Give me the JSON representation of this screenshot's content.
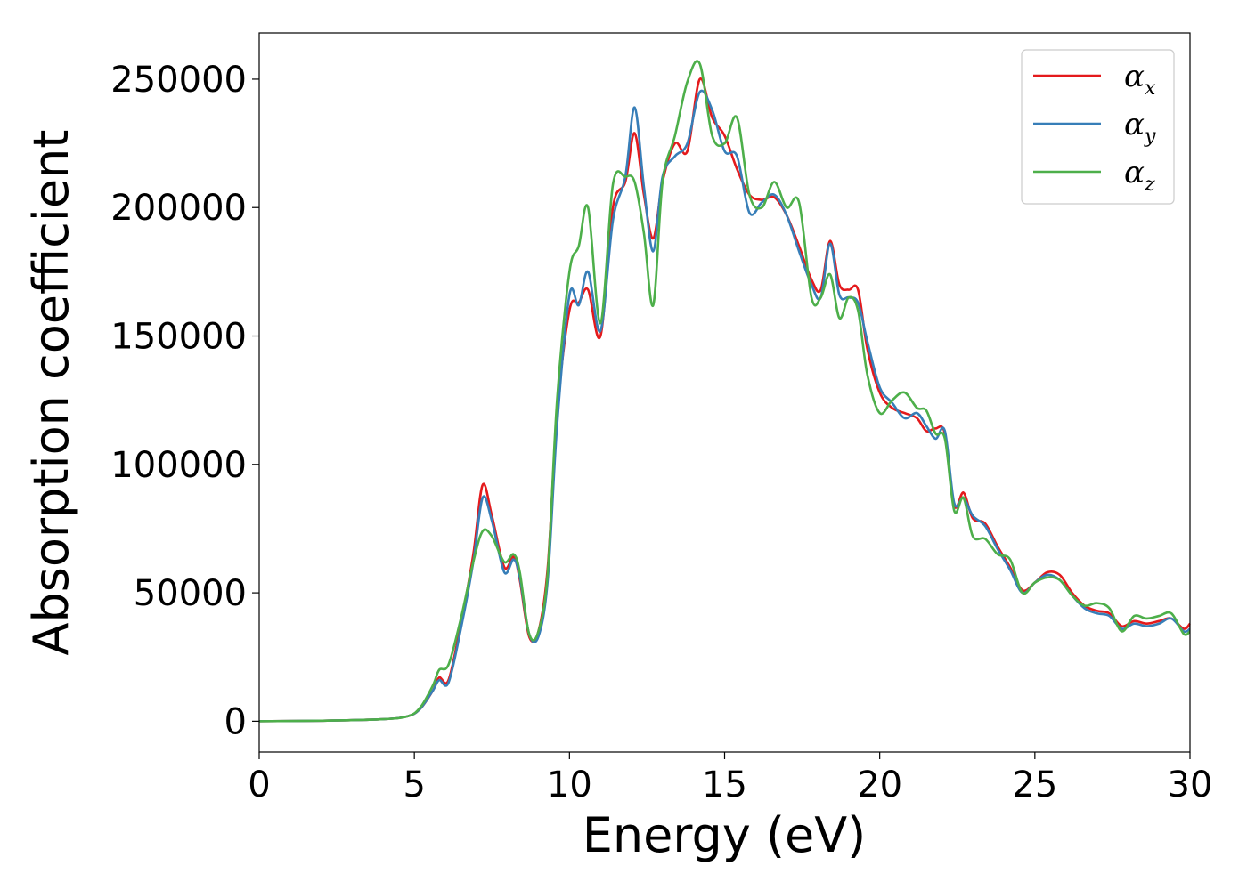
{
  "chart_data": {
    "type": "line",
    "xlabel": "Energy (eV)",
    "ylabel": "Absorption coefficient",
    "xlim": [
      0,
      30
    ],
    "ylim": [
      -12000,
      268000
    ],
    "xticks": [
      0,
      5,
      10,
      15,
      20,
      25,
      30
    ],
    "yticks": [
      0,
      50000,
      100000,
      150000,
      200000,
      250000
    ],
    "grid": false,
    "legend_position": "top-right",
    "series": [
      {
        "name": "α_x",
        "symbol": "α",
        "subscript": "x",
        "color": "#e41a1c",
        "x": [
          0,
          2,
          4,
          4.8,
          5.2,
          5.6,
          5.8,
          6.1,
          6.5,
          6.9,
          7.2,
          7.5,
          7.9,
          8.2,
          8.4,
          8.7,
          9.0,
          9.3,
          9.6,
          10.0,
          10.3,
          10.6,
          11.0,
          11.4,
          11.8,
          12.1,
          12.4,
          12.7,
          13.0,
          13.4,
          13.8,
          14.2,
          14.6,
          15.0,
          15.4,
          15.8,
          16.2,
          16.6,
          17.0,
          17.4,
          17.8,
          18.1,
          18.4,
          18.7,
          19.0,
          19.3,
          19.6,
          20.0,
          20.4,
          20.8,
          21.2,
          21.5,
          21.8,
          22.1,
          22.4,
          22.7,
          23.0,
          23.4,
          23.8,
          24.2,
          24.6,
          25.0,
          25.4,
          25.8,
          26.2,
          26.6,
          27.0,
          27.4,
          27.8,
          28.2,
          28.6,
          29.0,
          29.4,
          29.8,
          30.0
        ],
        "y": [
          0,
          200,
          800,
          2000,
          5000,
          12000,
          17000,
          16000,
          38000,
          65000,
          92000,
          80000,
          60000,
          64000,
          55000,
          33000,
          35000,
          60000,
          120000,
          160000,
          163000,
          168000,
          150000,
          200000,
          210000,
          229000,
          205000,
          188000,
          210000,
          225000,
          222000,
          250000,
          235000,
          228000,
          215000,
          205000,
          203000,
          204000,
          197000,
          185000,
          172000,
          168000,
          187000,
          170000,
          168000,
          168000,
          145000,
          128000,
          122000,
          120000,
          118000,
          113000,
          114000,
          112000,
          84000,
          89000,
          79000,
          77000,
          68000,
          60000,
          51000,
          54000,
          58000,
          57000,
          50000,
          45000,
          43000,
          42000,
          37000,
          39000,
          38000,
          39000,
          40000,
          36000,
          38000
        ]
      },
      {
        "name": "α_y",
        "symbol": "α",
        "subscript": "y",
        "color": "#377eb8",
        "x": [
          0,
          2,
          4,
          4.8,
          5.2,
          5.6,
          5.8,
          6.1,
          6.5,
          6.9,
          7.2,
          7.5,
          7.9,
          8.2,
          8.4,
          8.7,
          9.0,
          9.3,
          9.6,
          10.0,
          10.3,
          10.6,
          11.0,
          11.4,
          11.8,
          12.1,
          12.4,
          12.7,
          13.0,
          13.4,
          13.8,
          14.2,
          14.6,
          15.0,
          15.4,
          15.8,
          16.2,
          16.6,
          17.0,
          17.4,
          17.8,
          18.1,
          18.4,
          18.7,
          19.0,
          19.3,
          19.6,
          20.0,
          20.4,
          20.8,
          21.2,
          21.5,
          21.8,
          22.1,
          22.4,
          22.7,
          23.0,
          23.4,
          23.8,
          24.2,
          24.6,
          25.0,
          25.4,
          25.8,
          26.2,
          26.6,
          27.0,
          27.4,
          27.8,
          28.2,
          28.6,
          29.0,
          29.4,
          29.8,
          30.0
        ],
        "y": [
          0,
          200,
          800,
          2000,
          5000,
          12000,
          16000,
          15000,
          36000,
          62000,
          87000,
          78000,
          58000,
          63000,
          56000,
          34000,
          33000,
          55000,
          115000,
          166000,
          162000,
          175000,
          152000,
          195000,
          212000,
          239000,
          208000,
          183000,
          212000,
          220000,
          225000,
          245000,
          238000,
          222000,
          220000,
          198000,
          202000,
          205000,
          197000,
          183000,
          170000,
          165000,
          186000,
          166000,
          165000,
          163000,
          148000,
          130000,
          124000,
          118000,
          120000,
          115000,
          110000,
          113000,
          85000,
          87000,
          80000,
          76000,
          67000,
          59000,
          50000,
          54000,
          57000,
          55000,
          49000,
          44000,
          42000,
          41000,
          36000,
          38000,
          37000,
          38000,
          40000,
          35000,
          36000
        ]
      },
      {
        "name": "α_z",
        "symbol": "α",
        "subscript": "z",
        "color": "#4daf4a",
        "x": [
          0,
          2,
          4,
          4.8,
          5.2,
          5.6,
          5.8,
          6.1,
          6.5,
          6.9,
          7.2,
          7.5,
          7.9,
          8.2,
          8.4,
          8.7,
          9.0,
          9.3,
          9.6,
          10.0,
          10.3,
          10.6,
          11.0,
          11.4,
          11.8,
          12.1,
          12.4,
          12.7,
          13.0,
          13.4,
          13.8,
          14.2,
          14.6,
          15.0,
          15.4,
          15.8,
          16.2,
          16.6,
          17.0,
          17.4,
          17.8,
          18.1,
          18.4,
          18.7,
          19.0,
          19.3,
          19.6,
          20.0,
          20.4,
          20.8,
          21.2,
          21.5,
          21.8,
          22.1,
          22.4,
          22.7,
          23.0,
          23.4,
          23.8,
          24.2,
          24.6,
          25.0,
          25.4,
          25.8,
          26.2,
          26.6,
          27.0,
          27.4,
          27.8,
          28.2,
          28.6,
          29.0,
          29.4,
          29.8,
          30.0
        ],
        "y": [
          0,
          200,
          800,
          2000,
          5500,
          14000,
          20000,
          22000,
          40000,
          62000,
          74000,
          72000,
          62000,
          65000,
          58000,
          34000,
          35000,
          58000,
          125000,
          175000,
          185000,
          200000,
          155000,
          209000,
          212000,
          210000,
          190000,
          162000,
          210000,
          228000,
          249000,
          256000,
          228000,
          225000,
          235000,
          205000,
          200000,
          210000,
          200000,
          202000,
          165000,
          165000,
          174000,
          157000,
          165000,
          160000,
          135000,
          120000,
          125000,
          128000,
          122000,
          121000,
          112000,
          110000,
          82000,
          87000,
          72000,
          71000,
          65000,
          63000,
          50000,
          54000,
          56000,
          55000,
          49000,
          45000,
          46000,
          44000,
          35000,
          41000,
          40000,
          41000,
          42000,
          34000,
          35000
        ]
      }
    ]
  }
}
